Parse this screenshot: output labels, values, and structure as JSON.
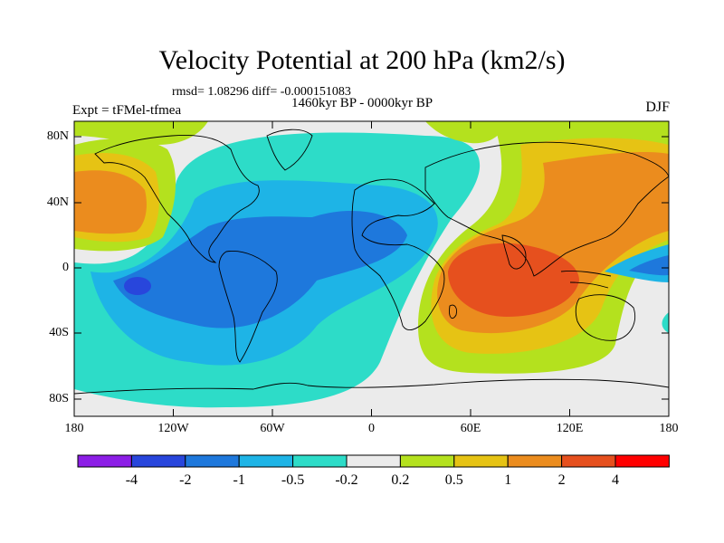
{
  "figure": {
    "title": "Velocity Potential at 200 hPa (km2/s)",
    "stats": "rmsd= 1.08296 diff= -0.000151083",
    "period": "1460kyr BP - 0000kyr BP",
    "experiment": "Expt = tFMel-tfmea",
    "season": "DJF"
  },
  "axes": {
    "y_ticks": [
      "80N",
      "40N",
      "0",
      "40S",
      "80S"
    ],
    "x_ticks": [
      "180",
      "120W",
      "60W",
      "0",
      "60E",
      "120E",
      "180"
    ]
  },
  "colorbar": {
    "colors": [
      "#8c1ee6",
      "#2846dc",
      "#1e78dc",
      "#1eb4e6",
      "#2ddcc8",
      "#ebebeb",
      "#b4e11e",
      "#e6c314",
      "#eb8c1e",
      "#e6501e",
      "#ff0000"
    ],
    "labels": [
      "-4",
      "-2",
      "-1",
      "-0.5",
      "-0.2",
      "0.2",
      "0.5",
      "1",
      "2",
      "4"
    ]
  }
}
